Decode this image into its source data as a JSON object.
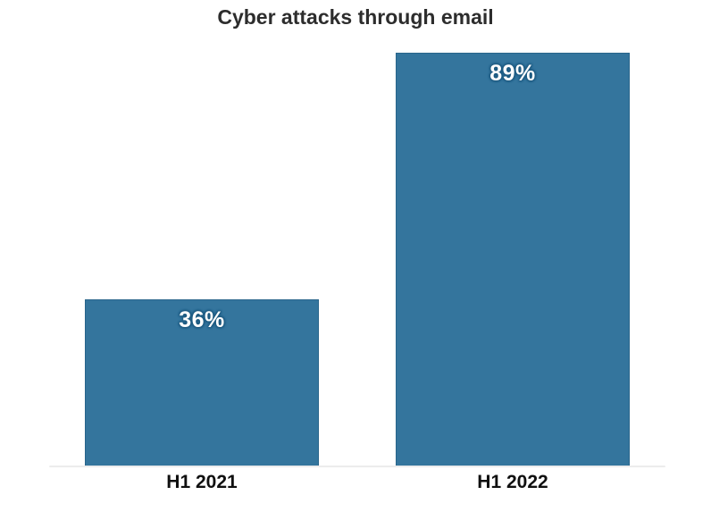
{
  "chart_data": {
    "type": "bar",
    "title": "Cyber attacks through email",
    "categories": [
      "H1 2021",
      "H1 2022"
    ],
    "values": [
      36,
      89
    ],
    "value_labels": [
      "36%",
      "89%"
    ],
    "xlabel": "",
    "ylabel": "",
    "ylim": [
      0,
      100
    ],
    "grid": false,
    "legend": "none",
    "bar_color": "#34759D",
    "bar_edge_color": "#1d5a80",
    "value_label_color": "#ffffff",
    "value_label_outline_color": "#1d5a80",
    "title_color": "#2d2d2d",
    "tick_label_color": "#101010",
    "axis_line_color": "#ececec",
    "background_color": "#ffffff"
  }
}
